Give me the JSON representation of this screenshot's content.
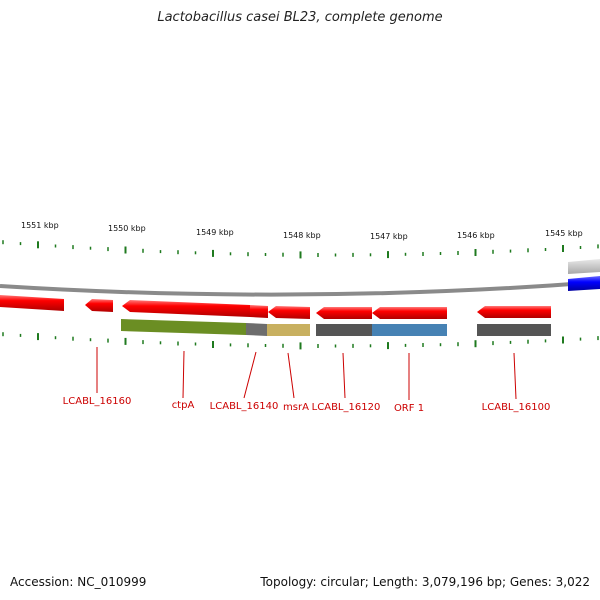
{
  "title": "Lactobacillus casei BL23, complete genome",
  "footer": {
    "accession": "Accession: NC_010999",
    "topology": "Topology: circular; Length: 3,079,196 bp; Genes: 3,022"
  },
  "scale_labels": [
    "1551 kbp",
    "1550 kbp",
    "1549 kbp",
    "1548 kbp",
    "1547 kbp",
    "1546 kbp",
    "1545 kbp"
  ],
  "gene_labels": [
    "LCABL_16160",
    "ctpA",
    "LCABL_16140",
    "msrA",
    "LCABL_16120",
    "ORF 1",
    "LCABL_16100"
  ],
  "colors": {
    "gene": "#ff0000",
    "backbone": "#8a8a8a",
    "tick": "#1f7a1f",
    "label": "#cc0000",
    "blue_feature": "#0000ff",
    "olive_feature": "#6b8e23",
    "khaki_feature": "#c8b060",
    "steel_feature": "#4682b4",
    "gray_feature": "#555555"
  }
}
